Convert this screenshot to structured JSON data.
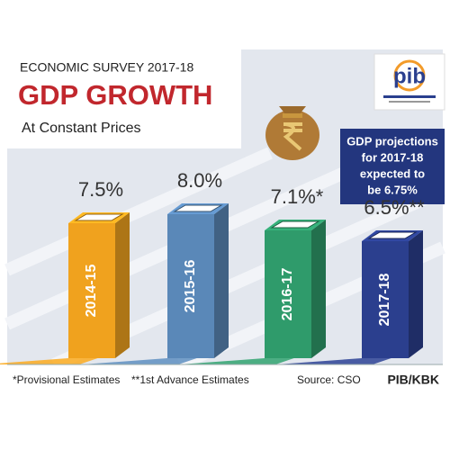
{
  "chart_data": {
    "type": "bar",
    "kicker": "ECONOMIC SURVEY 2017-18",
    "title": "GDP GROWTH",
    "subtitle": "At Constant Prices",
    "logo": "pib",
    "callout": [
      "GDP projections",
      "for 2017-18",
      "expected to",
      "be 6.75%"
    ],
    "categories": [
      "2014-15",
      "2015-16",
      "2016-17",
      "2017-18"
    ],
    "values": [
      7.5,
      8.0,
      7.1,
      6.5
    ],
    "value_labels": [
      "7.5%",
      "8.0%",
      "7.1%*",
      "6.5%**"
    ],
    "colors": [
      "#f0a21e",
      "#5a88b8",
      "#2f9b6b",
      "#2b3f8e"
    ],
    "footnotes": [
      "*Provisional Estimates",
      "**1st Advance Estimates"
    ],
    "source": "Source: CSO",
    "credit": "PIB/KBK"
  }
}
